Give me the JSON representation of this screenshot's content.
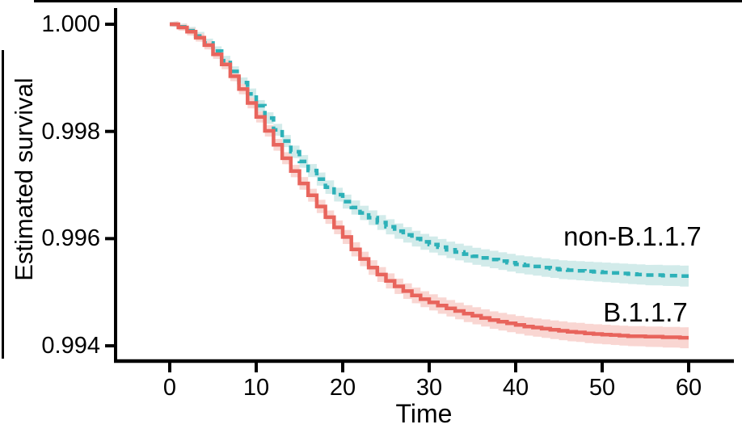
{
  "figure": {
    "background": "#FFFFFF",
    "frame_color": "#000000",
    "axis_color": "#000000"
  },
  "chart_data": {
    "type": "line",
    "subtype": "step-survival-kaplan-meier",
    "title": "",
    "xlabel": "Time",
    "ylabel": "Estimated survival",
    "xlim": [
      -6,
      65
    ],
    "ylim": [
      0.9937,
      1.0003
    ],
    "grid": false,
    "legend_position": "inline-right-annotations",
    "x_ticks": [
      0,
      10,
      20,
      30,
      40,
      50,
      60
    ],
    "y_ticks": [
      {
        "value": 1.0,
        "label": "1.000"
      },
      {
        "value": 0.998,
        "label": "0.998"
      },
      {
        "value": 0.996,
        "label": "0.996"
      },
      {
        "value": 0.994,
        "label": "0.994"
      }
    ],
    "x": [
      0,
      1,
      2,
      3,
      4,
      5,
      6,
      7,
      8,
      9,
      10,
      11,
      12,
      13,
      14,
      15,
      16,
      17,
      18,
      19,
      20,
      21,
      22,
      23,
      24,
      25,
      26,
      27,
      28,
      29,
      30,
      31,
      32,
      33,
      34,
      35,
      36,
      37,
      38,
      39,
      40,
      41,
      42,
      43,
      44,
      45,
      46,
      47,
      48,
      49,
      50,
      51,
      52,
      53,
      54,
      55,
      56,
      57,
      58,
      59,
      60
    ],
    "series": [
      {
        "name": "non-B.1.1.7",
        "style": "dashed",
        "color": "#2DB1B8",
        "band_color": "#D2EBEA",
        "label_anchor": {
          "t": 53.5,
          "v": 0.99604
        },
        "values": [
          1.0,
          0.99995,
          0.99988,
          0.99978,
          0.99965,
          0.9995,
          0.99932,
          0.99912,
          0.99891,
          0.9987,
          0.99848,
          0.99825,
          0.99803,
          0.99782,
          0.99762,
          0.99744,
          0.99727,
          0.99711,
          0.99696,
          0.99682,
          0.99669,
          0.99658,
          0.99648,
          0.99639,
          0.9963,
          0.99622,
          0.99614,
          0.99607,
          0.996,
          0.99594,
          0.99589,
          0.99584,
          0.99579,
          0.99575,
          0.99571,
          0.99567,
          0.99564,
          0.99561,
          0.99558,
          0.99555,
          0.99552,
          0.9955,
          0.99548,
          0.99546,
          0.99544,
          0.99542,
          0.99541,
          0.9954,
          0.99539,
          0.99538,
          0.99537,
          0.99536,
          0.99535,
          0.99534,
          0.99533,
          0.99532,
          0.99532,
          0.99531,
          0.99531,
          0.9953,
          0.9953
        ]
      },
      {
        "name": "B.1.1.7",
        "style": "solid",
        "color": "#E8645C",
        "band_color": "#F9D6D2",
        "label_anchor": {
          "t": 55.0,
          "v": 0.99462
        },
        "values": [
          1.0,
          0.99994,
          0.99986,
          0.99975,
          0.99961,
          0.99944,
          0.99925,
          0.99903,
          0.99879,
          0.99853,
          0.99827,
          0.99801,
          0.99775,
          0.9975,
          0.99726,
          0.99703,
          0.99681,
          0.9966,
          0.9964,
          0.99621,
          0.99603,
          0.9958,
          0.99562,
          0.99546,
          0.99533,
          0.99521,
          0.99511,
          0.99502,
          0.99494,
          0.99487,
          0.99481,
          0.99475,
          0.9947,
          0.99465,
          0.9946,
          0.99456,
          0.99452,
          0.99448,
          0.99445,
          0.99442,
          0.99439,
          0.99436,
          0.99434,
          0.99432,
          0.9943,
          0.99428,
          0.99426,
          0.99425,
          0.99423,
          0.99422,
          0.99421,
          0.9942,
          0.99419,
          0.99418,
          0.99418,
          0.99417,
          0.99417,
          0.99416,
          0.99416,
          0.99415,
          0.99415
        ]
      }
    ]
  }
}
